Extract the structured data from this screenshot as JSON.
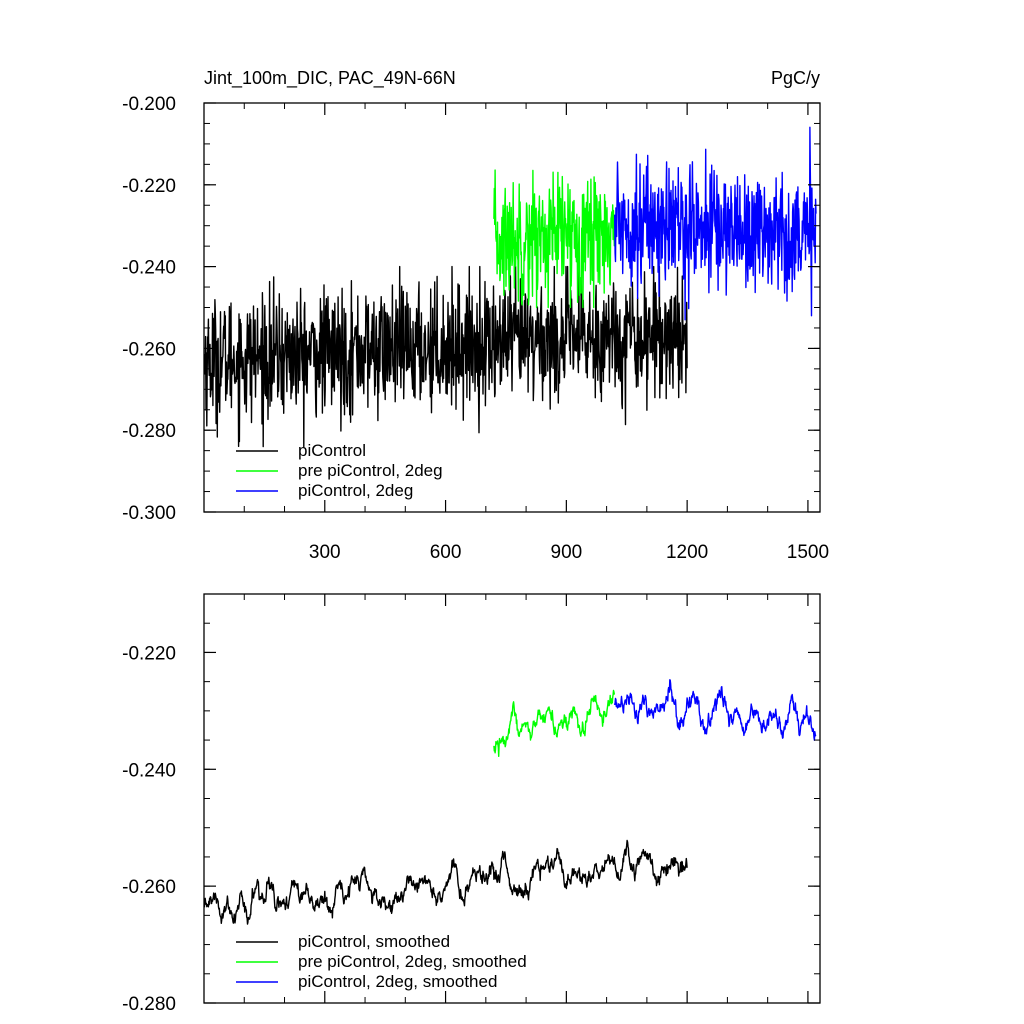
{
  "title_left": "Jint_100m_DIC, PAC_49N-66N",
  "title_right": "PgC/y",
  "chart_data": [
    {
      "type": "line",
      "title": "Jint_100m_DIC, PAC_49N-66N",
      "units": "PgC/y",
      "xlim": [
        0,
        1530
      ],
      "ylim": [
        -0.3,
        -0.2
      ],
      "yticks": [
        -0.3,
        -0.28,
        -0.26,
        -0.24,
        -0.22,
        -0.2
      ],
      "ytick_labels": [
        "-0.300",
        "-0.280",
        "-0.260",
        "-0.240",
        "-0.220",
        "-0.200"
      ],
      "xticks": [
        300,
        600,
        900,
        1200,
        1500
      ],
      "xtick_labels": [
        "300",
        "600",
        "900",
        "1200",
        "1500"
      ],
      "grid": false,
      "legend_position": "bottom-left",
      "series": [
        {
          "name": "piControl",
          "color": "#000000",
          "x_start": 1,
          "x_end": 1200,
          "mean_start": -0.263,
          "mean_end": -0.256,
          "amplitude": 0.0075,
          "min": -0.284,
          "max": -0.24
        },
        {
          "name": "pre piControl, 2deg",
          "color": "#00ff00",
          "x_start": 720,
          "x_end": 1020,
          "mean_start": -0.234,
          "mean_end": -0.231,
          "amplitude": 0.0075,
          "min": -0.25,
          "max": -0.211
        },
        {
          "name": "piControl, 2deg",
          "color": "#0000ff",
          "x_start": 1020,
          "x_end": 1520,
          "mean_start": -0.229,
          "mean_end": -0.232,
          "amplitude": 0.0075,
          "min": -0.253,
          "max": -0.204
        }
      ]
    },
    {
      "type": "line",
      "xlim": [
        0,
        1530
      ],
      "ylim": [
        -0.28,
        -0.21
      ],
      "yticks": [
        -0.28,
        -0.26,
        -0.24,
        -0.22
      ],
      "ytick_labels": [
        "-0.280",
        "-0.260",
        "-0.240",
        "-0.220"
      ],
      "xticks": [
        300,
        600,
        900,
        1200,
        1500
      ],
      "grid": false,
      "legend_position": "bottom-left",
      "series": [
        {
          "name": "piControl, smoothed",
          "color": "#000000",
          "x_start": 1,
          "x_end": 1200,
          "mean_start": -0.263,
          "mean_end": -0.256,
          "amplitude": 0.0035,
          "min": -0.27,
          "max": -0.246
        },
        {
          "name": "pre piControl, 2deg, smoothed",
          "color": "#00ff00",
          "x_start": 720,
          "x_end": 1020,
          "mean_start": -0.234,
          "mean_end": -0.231,
          "amplitude": 0.0035,
          "min": -0.24,
          "max": -0.219
        },
        {
          "name": "piControl, 2deg, smoothed",
          "color": "#0000ff",
          "x_start": 1020,
          "x_end": 1520,
          "mean_start": -0.229,
          "mean_end": -0.232,
          "amplitude": 0.0035,
          "min": -0.239,
          "max": -0.22
        }
      ]
    }
  ]
}
